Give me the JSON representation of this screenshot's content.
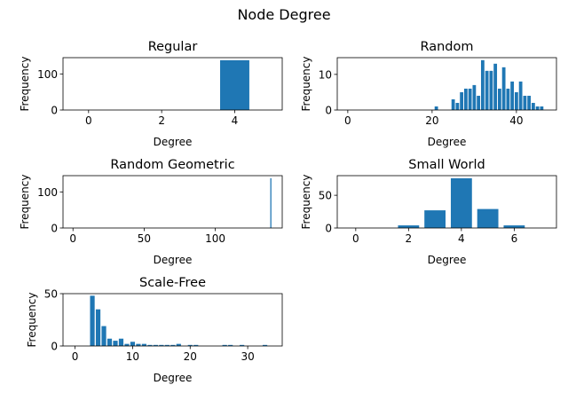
{
  "figure": {
    "title": "Node Degree"
  },
  "chart_data": [
    {
      "type": "bar",
      "title": "Regular",
      "xlabel": "Degree",
      "ylabel": "Frequency",
      "xlim": [
        -0.7,
        5.3
      ],
      "ylim": [
        0,
        145
      ],
      "xticks": [
        0,
        2,
        4
      ],
      "yticks": [
        0,
        100
      ],
      "bar_width": 0.8,
      "x": [
        4
      ],
      "values": [
        138
      ],
      "color": "#1f77b4"
    },
    {
      "type": "bar",
      "title": "Random",
      "xlabel": "Degree",
      "ylabel": "Frequency",
      "xlim": [
        -2.5,
        49.5
      ],
      "ylim": [
        0,
        14.7
      ],
      "xticks": [
        0,
        20,
        40
      ],
      "yticks": [
        0,
        10
      ],
      "bar_width": 0.8,
      "x": [
        21,
        25,
        26,
        27,
        28,
        29,
        30,
        31,
        32,
        33,
        34,
        35,
        36,
        37,
        38,
        39,
        40,
        41,
        42,
        43,
        44,
        45,
        46
      ],
      "values": [
        1,
        3,
        2,
        5,
        6,
        6,
        7,
        4,
        14,
        11,
        11,
        13,
        6,
        12,
        6,
        8,
        5,
        8,
        4,
        4,
        2,
        1,
        1
      ],
      "color": "#1f77b4"
    },
    {
      "type": "bar",
      "title": "Random Geometric",
      "xlabel": "Degree",
      "ylabel": "Frequency",
      "xlim": [
        -7,
        147
      ],
      "ylim": [
        0,
        145
      ],
      "xticks": [
        0,
        50,
        100
      ],
      "yticks": [
        0,
        100
      ],
      "bar_width": 0.8,
      "x": [
        139
      ],
      "values": [
        138
      ],
      "color": "#1f77b4"
    },
    {
      "type": "bar",
      "title": "Small World",
      "xlabel": "Degree",
      "ylabel": "Frequency",
      "xlim": [
        -0.7,
        7.6
      ],
      "ylim": [
        0,
        80
      ],
      "xticks": [
        0,
        2,
        4,
        6
      ],
      "yticks": [
        0,
        50
      ],
      "bar_width": 0.8,
      "x": [
        2,
        3,
        4,
        5,
        6
      ],
      "values": [
        4,
        27,
        76,
        29,
        4
      ],
      "color": "#1f77b4"
    },
    {
      "type": "bar",
      "title": "Scale-Free",
      "xlabel": "Degree",
      "ylabel": "Frequency",
      "xlim": [
        -2.1,
        36
      ],
      "ylim": [
        0,
        50
      ],
      "xticks": [
        0,
        10,
        20,
        30
      ],
      "yticks": [
        0,
        50
      ],
      "bar_width": 0.8,
      "x": [
        3,
        4,
        5,
        6,
        7,
        8,
        9,
        10,
        11,
        12,
        13,
        14,
        15,
        16,
        17,
        18,
        20,
        21,
        26,
        27,
        29,
        33
      ],
      "values": [
        48,
        35,
        19,
        7,
        5,
        7,
        2,
        4,
        2,
        2,
        1,
        1,
        1,
        1,
        1,
        2,
        1,
        1,
        1,
        1,
        1,
        1
      ],
      "color": "#1f77b4"
    }
  ]
}
